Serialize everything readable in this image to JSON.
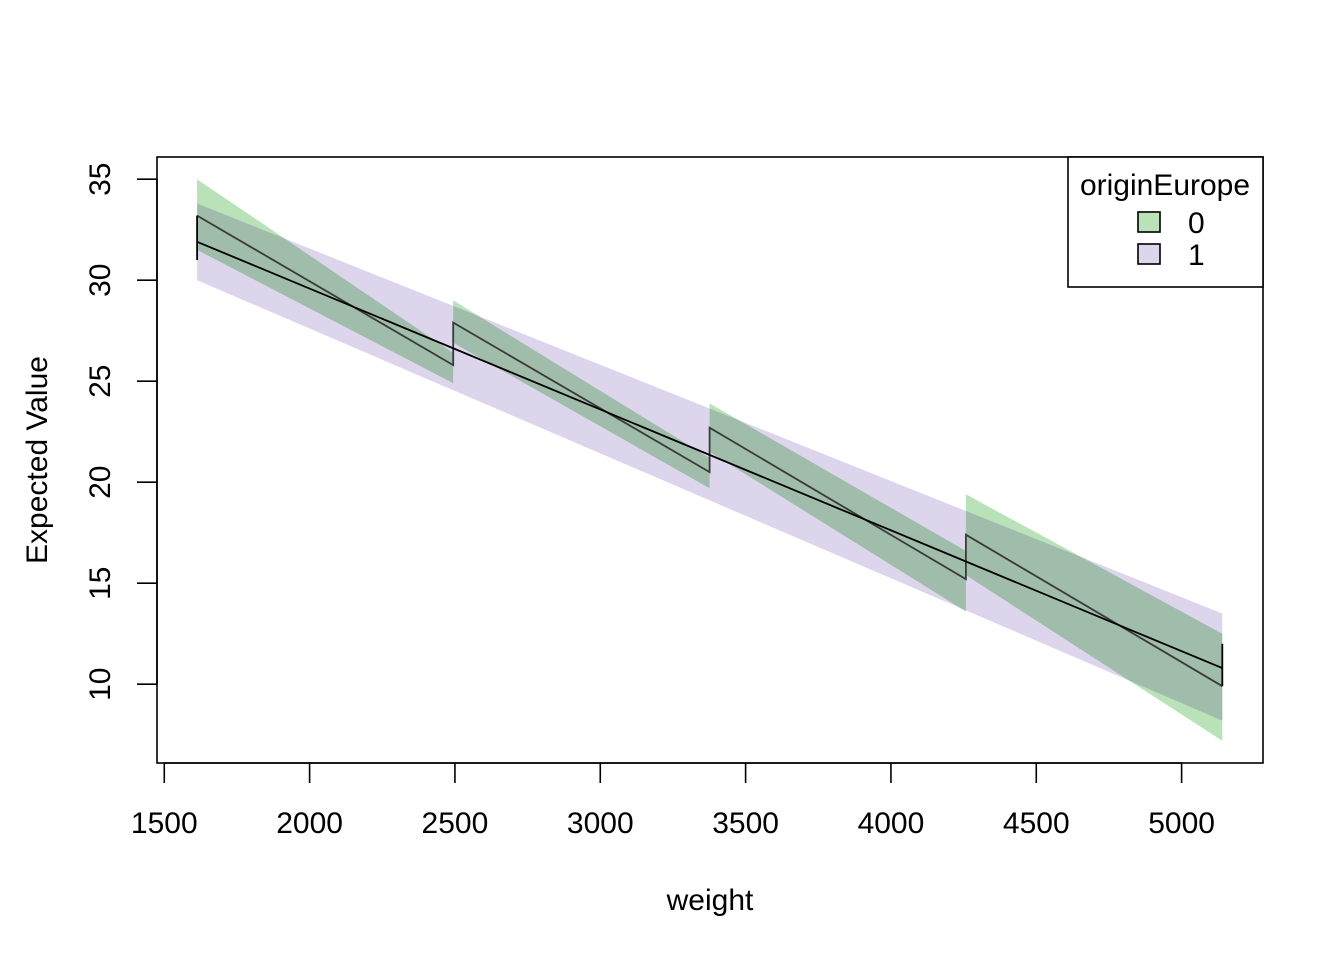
{
  "chart_data": {
    "type": "line",
    "title": "",
    "xlabel": "weight",
    "ylabel": "Expected Value",
    "xlim": [
      1475,
      5280
    ],
    "ylim": [
      6.1,
      36.1
    ],
    "xticks": [
      1500,
      2000,
      2500,
      3000,
      3500,
      4000,
      4500,
      5000
    ],
    "yticks": [
      10,
      15,
      20,
      25,
      30,
      35
    ],
    "x_tick_labels": [
      "1500",
      "2000",
      "2500",
      "3000",
      "3500",
      "4000",
      "4500",
      "5000"
    ],
    "y_tick_labels": [
      "10",
      "15",
      "20",
      "25",
      "30",
      "35"
    ],
    "grid": false,
    "legend": {
      "title": "originEurope",
      "placement": "top-right",
      "entries": [
        "0",
        "1"
      ]
    },
    "series": [
      {
        "name": "0",
        "color": "#b9e2b9",
        "segments": [
          {
            "x": [
              1613,
              2494
            ],
            "fit": [
              33.2,
              25.8
            ],
            "lower": [
              31.5,
              24.9
            ],
            "upper": [
              35.0,
              26.4
            ]
          },
          {
            "x": [
              2494,
              3376
            ],
            "fit": [
              27.9,
              20.5
            ],
            "lower": [
              26.9,
              19.7
            ],
            "upper": [
              29.0,
              21.2
            ]
          },
          {
            "x": [
              3376,
              4258
            ],
            "fit": [
              22.7,
              15.2
            ],
            "lower": [
              21.5,
              13.6
            ],
            "upper": [
              23.9,
              16.6
            ]
          },
          {
            "x": [
              4258,
              5140
            ],
            "fit": [
              17.4,
              9.9
            ],
            "lower": [
              15.4,
              7.2
            ],
            "upper": [
              19.4,
              12.5
            ]
          }
        ]
      },
      {
        "name": "1",
        "color": "#ddd5ec",
        "segments": [
          {
            "x": [
              1613,
              5140
            ],
            "fit": [
              31.9,
              10.8
            ],
            "lower": [
              30.0,
              8.2
            ],
            "upper": [
              33.8,
              13.5
            ]
          }
        ]
      }
    ],
    "fit_line_color": "#000000"
  }
}
